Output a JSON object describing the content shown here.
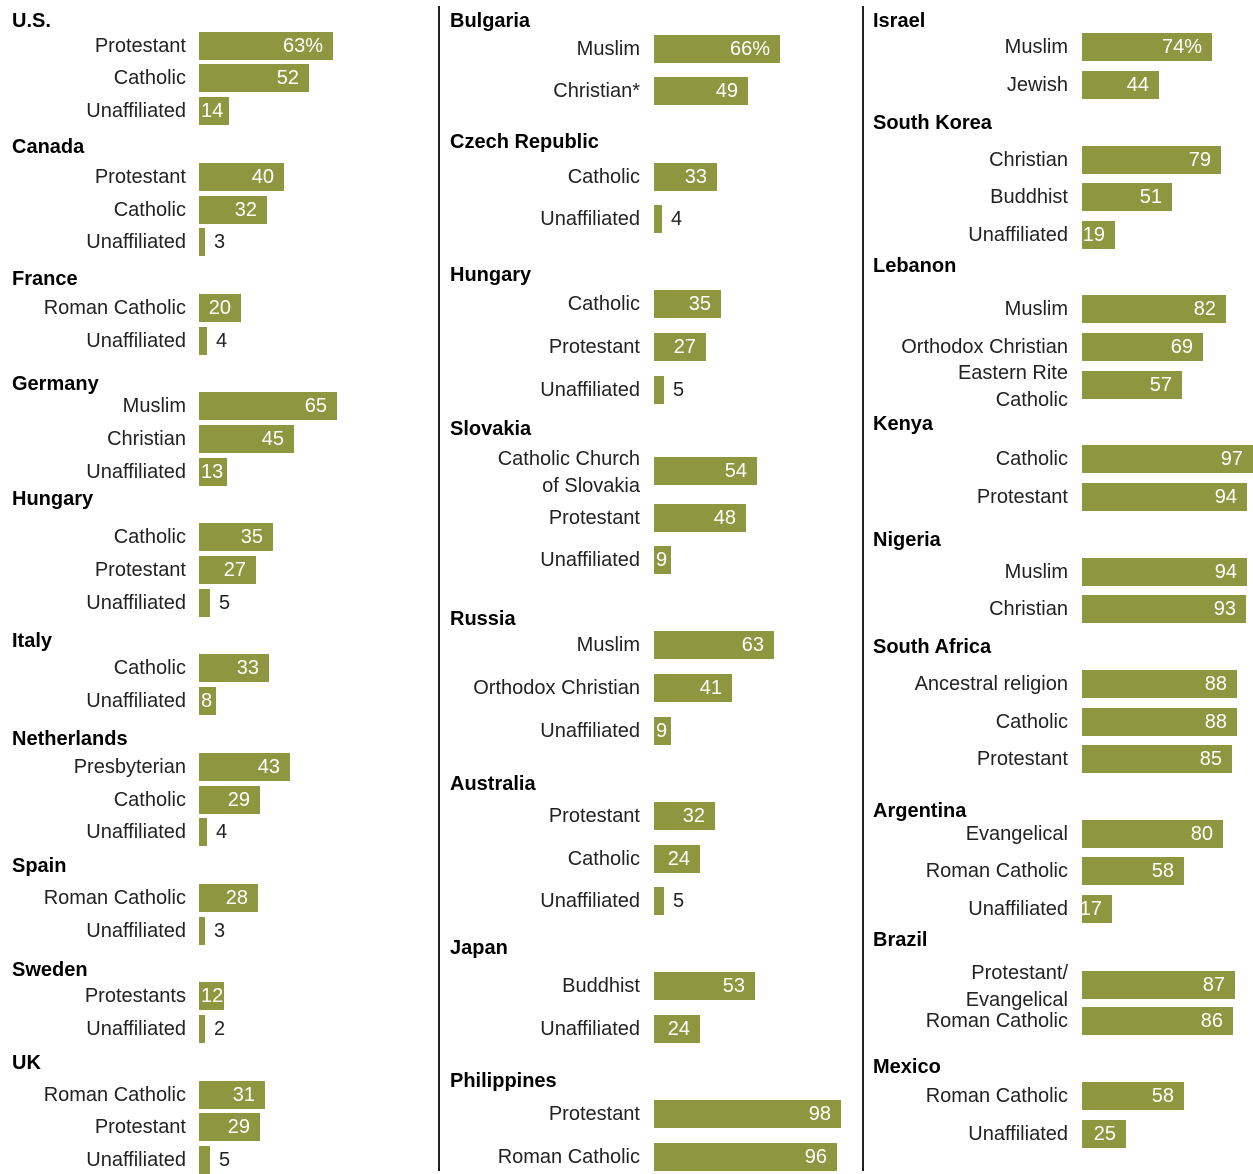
{
  "chart_data": {
    "type": "bar",
    "value_suffix_first": "%",
    "columns": [
      {
        "countries": [
          {
            "name": "U.S.",
            "rows": [
              {
                "label": "Protestant",
                "value": 63,
                "display": "63%"
              },
              {
                "label": "Catholic",
                "value": 52,
                "display": "52"
              },
              {
                "label": "Unaffiliated",
                "value": 14,
                "display": "14"
              }
            ]
          },
          {
            "name": "Canada",
            "rows": [
              {
                "label": "Protestant",
                "value": 40,
                "display": "40"
              },
              {
                "label": "Catholic",
                "value": 32,
                "display": "32"
              },
              {
                "label": "Unaffiliated",
                "value": 3,
                "display": "3"
              }
            ]
          },
          {
            "name": "France",
            "rows": [
              {
                "label": "Roman Catholic",
                "value": 20,
                "display": "20"
              },
              {
                "label": "Unaffiliated",
                "value": 4,
                "display": "4"
              }
            ]
          },
          {
            "name": "Germany",
            "rows": [
              {
                "label": "Muslim",
                "value": 65,
                "display": "65"
              },
              {
                "label": "Christian",
                "value": 45,
                "display": "45"
              },
              {
                "label": "Unaffiliated",
                "value": 13,
                "display": "13"
              }
            ]
          },
          {
            "name": "Hungary",
            "rows": [
              {
                "label": "Catholic",
                "value": 35,
                "display": "35"
              },
              {
                "label": "Protestant",
                "value": 27,
                "display": "27"
              },
              {
                "label": "Unaffiliated",
                "value": 5,
                "display": "5"
              }
            ]
          },
          {
            "name": "Italy",
            "rows": [
              {
                "label": "Catholic",
                "value": 33,
                "display": "33"
              },
              {
                "label": "Unaffiliated",
                "value": 8,
                "display": "8"
              }
            ]
          },
          {
            "name": "Netherlands",
            "rows": [
              {
                "label": "Presbyterian",
                "value": 43,
                "display": "43"
              },
              {
                "label": "Catholic",
                "value": 29,
                "display": "29"
              },
              {
                "label": "Unaffiliated",
                "value": 4,
                "display": "4"
              }
            ]
          },
          {
            "name": "Spain",
            "rows": [
              {
                "label": "Roman Catholic",
                "value": 28,
                "display": "28"
              },
              {
                "label": "Unaffiliated",
                "value": 3,
                "display": "3"
              }
            ]
          },
          {
            "name": "Sweden",
            "rows": [
              {
                "label": "Protestants",
                "value": 12,
                "display": "12"
              },
              {
                "label": "Unaffiliated",
                "value": 2,
                "display": "2"
              }
            ]
          },
          {
            "name": "UK",
            "rows": [
              {
                "label": "Roman Catholic",
                "value": 31,
                "display": "31"
              },
              {
                "label": "Protestant",
                "value": 29,
                "display": "29"
              },
              {
                "label": "Unaffiliated",
                "value": 5,
                "display": "5"
              }
            ]
          }
        ]
      },
      {
        "countries": [
          {
            "name": "Bulgaria",
            "rows": [
              {
                "label": "Muslim",
                "value": 66,
                "display": "66%"
              },
              {
                "label": "Christian*",
                "value": 49,
                "display": "49"
              }
            ]
          },
          {
            "name": "Czech Republic",
            "rows": [
              {
                "label": "Catholic",
                "value": 33,
                "display": "33"
              },
              {
                "label": "Unaffiliated",
                "value": 4,
                "display": "4"
              }
            ]
          },
          {
            "name": "Hungary",
            "rows": [
              {
                "label": "Catholic",
                "value": 35,
                "display": "35"
              },
              {
                "label": "Protestant",
                "value": 27,
                "display": "27"
              },
              {
                "label": "Unaffiliated",
                "value": 5,
                "display": "5"
              }
            ]
          },
          {
            "name": "Slovakia",
            "rows": [
              {
                "label": "Catholic Church\nof Slovakia",
                "value": 54,
                "display": "54"
              },
              {
                "label": "Protestant",
                "value": 48,
                "display": "48"
              },
              {
                "label": "Unaffiliated",
                "value": 9,
                "display": "9"
              }
            ]
          },
          {
            "name": "Russia",
            "rows": [
              {
                "label": "Muslim",
                "value": 63,
                "display": "63"
              },
              {
                "label": "Orthodox Christian",
                "value": 41,
                "display": "41"
              },
              {
                "label": "Unaffiliated",
                "value": 9,
                "display": "9"
              }
            ]
          },
          {
            "name": "Australia",
            "rows": [
              {
                "label": "Protestant",
                "value": 32,
                "display": "32"
              },
              {
                "label": "Catholic",
                "value": 24,
                "display": "24"
              },
              {
                "label": "Unaffiliated",
                "value": 5,
                "display": "5"
              }
            ]
          },
          {
            "name": "Japan",
            "rows": [
              {
                "label": "Buddhist",
                "value": 53,
                "display": "53"
              },
              {
                "label": "Unaffiliated",
                "value": 24,
                "display": "24"
              }
            ]
          },
          {
            "name": "Philippines",
            "rows": [
              {
                "label": "Protestant",
                "value": 98,
                "display": "98"
              },
              {
                "label": "Roman Catholic",
                "value": 96,
                "display": "96"
              }
            ]
          }
        ]
      },
      {
        "countries": [
          {
            "name": "Israel",
            "rows": [
              {
                "label": "Muslim",
                "value": 74,
                "display": "74%"
              },
              {
                "label": "Jewish",
                "value": 44,
                "display": "44"
              }
            ]
          },
          {
            "name": "South Korea",
            "rows": [
              {
                "label": "Christian",
                "value": 79,
                "display": "79"
              },
              {
                "label": "Buddhist",
                "value": 51,
                "display": "51"
              },
              {
                "label": "Unaffiliated",
                "value": 19,
                "display": "19"
              }
            ]
          },
          {
            "name": "Lebanon",
            "rows": [
              {
                "label": "Muslim",
                "value": 82,
                "display": "82"
              },
              {
                "label": "Orthodox Christian",
                "value": 69,
                "display": "69"
              },
              {
                "label": "Eastern Rite\nCatholic",
                "value": 57,
                "display": "57"
              }
            ]
          },
          {
            "name": "Kenya",
            "rows": [
              {
                "label": "Catholic",
                "value": 97,
                "display": "97"
              },
              {
                "label": "Protestant",
                "value": 94,
                "display": "94"
              }
            ]
          },
          {
            "name": "Nigeria",
            "rows": [
              {
                "label": "Muslim",
                "value": 94,
                "display": "94"
              },
              {
                "label": "Christian",
                "value": 93,
                "display": "93"
              }
            ]
          },
          {
            "name": "South Africa",
            "rows": [
              {
                "label": "Ancestral religion",
                "value": 88,
                "display": "88"
              },
              {
                "label": "Catholic",
                "value": 88,
                "display": "88"
              },
              {
                "label": "Protestant",
                "value": 85,
                "display": "85"
              }
            ]
          },
          {
            "name": "Argentina",
            "rows": [
              {
                "label": "Evangelical",
                "value": 80,
                "display": "80"
              },
              {
                "label": "Roman Catholic",
                "value": 58,
                "display": "58"
              },
              {
                "label": "Unaffiliated",
                "value": 17,
                "display": "17"
              }
            ]
          },
          {
            "name": "Brazil",
            "rows": [
              {
                "label": "Protestant/\nEvangelical",
                "value": 87,
                "display": "87"
              },
              {
                "label": "Roman Catholic",
                "value": 86,
                "display": "86"
              }
            ]
          },
          {
            "name": "Mexico",
            "rows": [
              {
                "label": "Roman Catholic",
                "value": 58,
                "display": "58"
              },
              {
                "label": "Unaffiliated",
                "value": 25,
                "display": "25"
              }
            ]
          }
        ]
      }
    ],
    "bar_color": "#8f9640",
    "inside_text_color": "#ffffff",
    "xlim": [
      0,
      100
    ]
  }
}
